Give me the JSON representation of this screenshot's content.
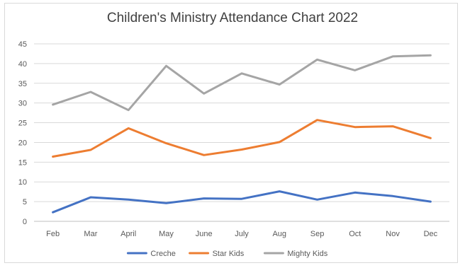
{
  "chart_data": {
    "type": "line",
    "title": "Children's Ministry Attendance Chart 2022",
    "xlabel": "",
    "ylabel": "",
    "categories": [
      "Feb",
      "Mar",
      "April",
      "May",
      "June",
      "July",
      "Aug",
      "Sep",
      "Oct",
      "Nov",
      "Dec"
    ],
    "ylim": [
      0,
      45
    ],
    "yticks": [
      0,
      5,
      10,
      15,
      20,
      25,
      30,
      35,
      40,
      45
    ],
    "grid": true,
    "legend_position": "bottom",
    "series": [
      {
        "name": "Creche",
        "color": "#4472c4",
        "values": [
          2.3,
          6.1,
          5.5,
          4.6,
          5.8,
          5.7,
          7.6,
          5.5,
          7.3,
          6.4,
          5.0
        ]
      },
      {
        "name": "Star Kids",
        "color": "#ed7d31",
        "values": [
          16.4,
          18.1,
          23.6,
          19.8,
          16.8,
          18.2,
          20.1,
          25.7,
          23.9,
          24.1,
          21.1
        ]
      },
      {
        "name": "Mighty Kids",
        "color": "#a5a5a5",
        "values": [
          29.6,
          32.8,
          28.2,
          39.4,
          32.4,
          37.5,
          34.7,
          41.0,
          38.3,
          41.8,
          42.1
        ]
      }
    ]
  }
}
